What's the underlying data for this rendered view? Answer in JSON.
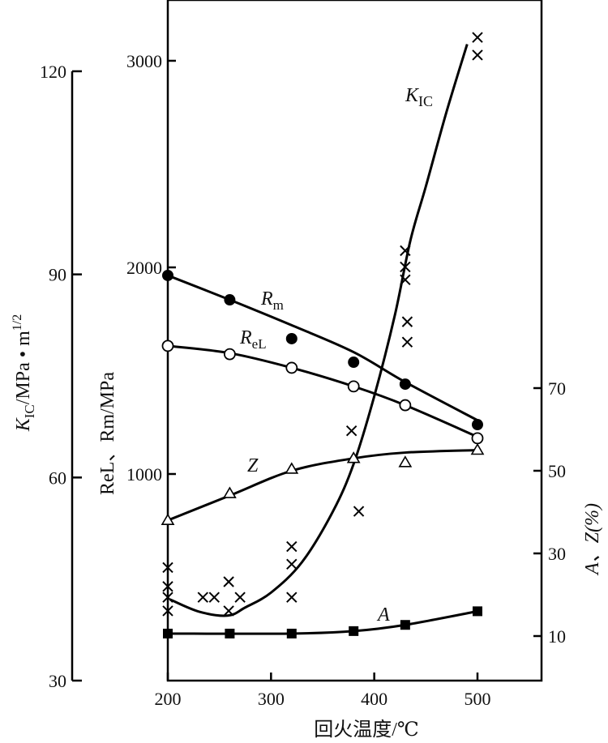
{
  "chart_data": {
    "type": "line",
    "xlabel": "回火温度/℃",
    "x_ticks": [
      200,
      300,
      400,
      500
    ],
    "xlim": [
      200,
      562
    ],
    "axes": {
      "kic": {
        "label_main": "K",
        "label_sub": "IC",
        "label_rest": "/MPa • m",
        "label_sup": "1/2",
        "ticks": [
          30,
          60,
          90,
          120
        ],
        "ylim": [
          30,
          120
        ]
      },
      "strength": {
        "label": "ReL、Rm/MPa",
        "ticks": [
          1000,
          2000,
          3000
        ],
        "ylim": [
          0,
          3300
        ]
      },
      "percent": {
        "label": "A、Z(%)",
        "ticks": [
          10,
          30,
          50,
          70
        ],
        "ylim": [
          0,
          80
        ]
      }
    },
    "series": [
      {
        "name": "Rm",
        "name_main": "R",
        "name_sub": "m",
        "axis": "strength",
        "marker": "filled-circle",
        "points": [
          [
            200,
            1961
          ],
          [
            260,
            1843
          ],
          [
            320,
            1655
          ],
          [
            380,
            1541
          ],
          [
            430,
            1435
          ],
          [
            500,
            1239
          ]
        ],
        "curve": [
          [
            200,
            1961
          ],
          [
            260,
            1843
          ],
          [
            320,
            1720
          ],
          [
            380,
            1590
          ],
          [
            430,
            1445
          ],
          [
            500,
            1260
          ]
        ]
      },
      {
        "name": "ReL",
        "name_main": "R",
        "name_sub": "eL",
        "axis": "strength",
        "marker": "open-circle",
        "points": [
          [
            200,
            1620
          ],
          [
            260,
            1580
          ],
          [
            320,
            1514
          ],
          [
            380,
            1424
          ],
          [
            430,
            1333
          ],
          [
            500,
            1173
          ]
        ],
        "curve": [
          [
            200,
            1620
          ],
          [
            260,
            1585
          ],
          [
            320,
            1514
          ],
          [
            380,
            1424
          ],
          [
            430,
            1333
          ],
          [
            500,
            1180
          ]
        ]
      },
      {
        "name": "Z",
        "name_main": "Z",
        "name_sub": "",
        "axis": "percent",
        "marker": "open-triangle",
        "points": [
          [
            200,
            38
          ],
          [
            260,
            44.5
          ],
          [
            320,
            50.4
          ],
          [
            380,
            53
          ],
          [
            430,
            52
          ],
          [
            500,
            55
          ]
        ],
        "curve": [
          [
            200,
            38
          ],
          [
            260,
            44
          ],
          [
            320,
            50
          ],
          [
            380,
            53
          ],
          [
            430,
            54.4
          ],
          [
            500,
            55
          ]
        ]
      },
      {
        "name": "A",
        "name_main": "A",
        "name_sub": "",
        "axis": "percent",
        "marker": "filled-square",
        "points": [
          [
            200,
            10.6
          ],
          [
            260,
            10.6
          ],
          [
            320,
            10.6
          ],
          [
            380,
            11.2
          ],
          [
            430,
            12.7
          ],
          [
            500,
            16
          ]
        ],
        "curve": [
          [
            200,
            10.6
          ],
          [
            320,
            10.6
          ],
          [
            380,
            11.2
          ],
          [
            430,
            12.7
          ],
          [
            500,
            16
          ]
        ]
      },
      {
        "name": "KIC",
        "name_main": "K",
        "name_sub": "IC",
        "axis": "kic",
        "marker": "cross",
        "points": [
          [
            200,
            46.7
          ],
          [
            200,
            43.9
          ],
          [
            200,
            42.3
          ],
          [
            200,
            40.3
          ],
          [
            234,
            42.3
          ],
          [
            245,
            42.3
          ],
          [
            259,
            44.6
          ],
          [
            259,
            40.3
          ],
          [
            270,
            42.3
          ],
          [
            320,
            49.8
          ],
          [
            320,
            47.2
          ],
          [
            320,
            42.3
          ],
          [
            378,
            66.9
          ],
          [
            385,
            55
          ],
          [
            430,
            93.5
          ],
          [
            430,
            91.1
          ],
          [
            430,
            89.2
          ],
          [
            432,
            83
          ],
          [
            432,
            80
          ],
          [
            500,
            125
          ],
          [
            500,
            122.4
          ]
        ],
        "curve": [
          [
            202,
            42
          ],
          [
            230,
            40.2
          ],
          [
            258,
            39.6
          ],
          [
            275,
            40.8
          ],
          [
            300,
            43
          ],
          [
            330,
            47.5
          ],
          [
            360,
            55
          ],
          [
            380,
            62
          ],
          [
            400,
            72
          ],
          [
            420,
            84
          ],
          [
            435,
            95
          ],
          [
            450,
            103
          ],
          [
            470,
            114
          ],
          [
            490,
            124
          ]
        ]
      }
    ],
    "grid": false,
    "legend": "inline labels"
  }
}
